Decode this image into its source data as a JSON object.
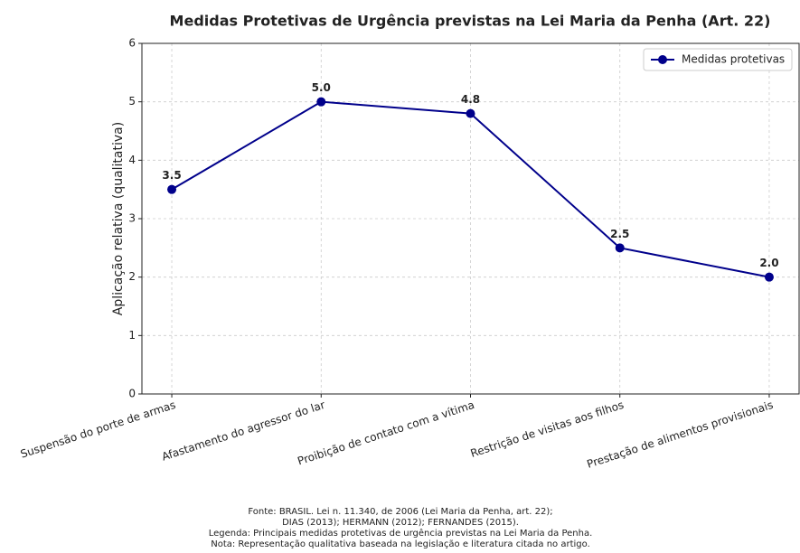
{
  "chart_data": {
    "type": "line",
    "title": "Medidas Protetivas de Urgência previstas na Lei Maria da Penha (Art. 22)",
    "ylabel": "Aplicação relativa (qualitativa)",
    "categories": [
      "Suspensão do porte de armas",
      "Afastamento do agressor do lar",
      "Proibição de contato com a vítima",
      "Restrição de visitas aos filhos",
      "Prestação de alimentos provisionais"
    ],
    "series": [
      {
        "name": "Medidas protetivas",
        "color": "#00008b",
        "values": [
          3.5,
          5,
          4.8,
          2.5,
          2
        ],
        "value_labels": [
          "3.5",
          "5.0",
          "4.8",
          "2.5",
          "2.0"
        ]
      }
    ],
    "ylim": [
      0,
      6
    ],
    "yticks": [
      0,
      1,
      2,
      3,
      4,
      5,
      6
    ],
    "grid": true,
    "legend": "upper right",
    "notes": [
      "Fonte: BRASIL. Lei n. 11.340, de 2006 (Lei Maria da Penha, art. 22);",
      "DIAS (2013); HERMANN (2012); FERNANDES (2015).",
      "Legenda: Principais medidas protetivas de urgência previstas na Lei Maria da Penha.",
      "Nota: Representação qualitativa baseada na legislação e literatura citada no artigo."
    ]
  }
}
